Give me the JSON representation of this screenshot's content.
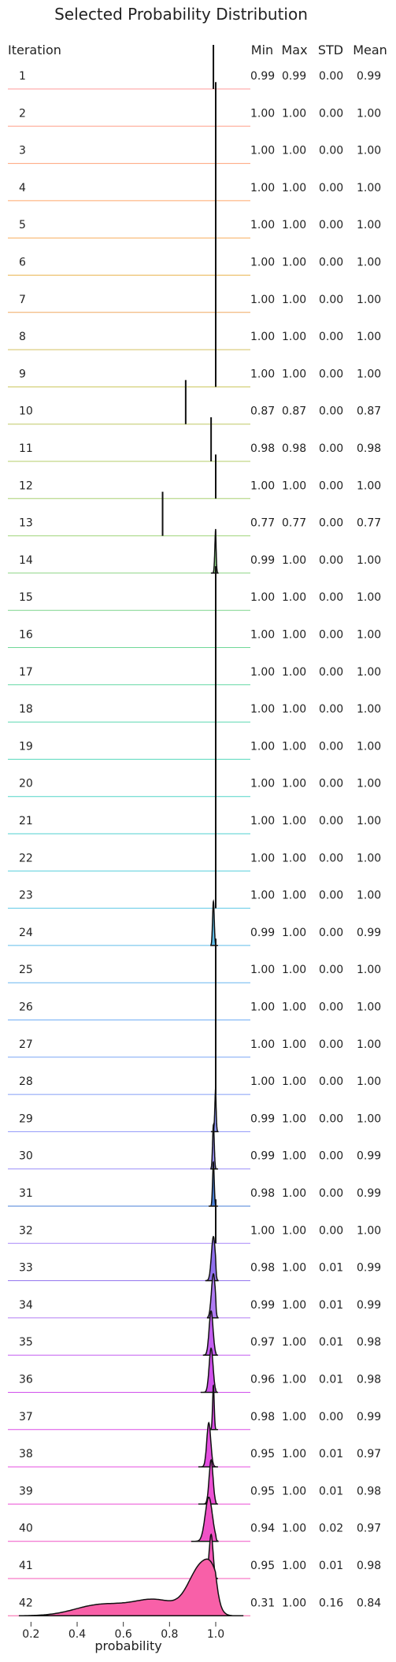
{
  "chart_data": {
    "type": "ridgeline",
    "title": "Selected Probability Distribution",
    "xlabel": "probability",
    "row_header": "Iteration",
    "stat_headers": [
      "Min",
      "Max",
      "STD",
      "Mean"
    ],
    "xlim": [
      0.1,
      1.15
    ],
    "xticks": [
      "0.2",
      "0.4",
      "0.6",
      "0.8",
      "1.0"
    ],
    "xtick_values": [
      0.2,
      0.4,
      0.6,
      0.8,
      1.0
    ],
    "rows": [
      {
        "iteration": "1",
        "min": "0.99",
        "max": "0.99",
        "std": "0.00",
        "mean": "0.99",
        "color": "#ff9999"
      },
      {
        "iteration": "2",
        "min": "1.00",
        "max": "1.00",
        "std": "0.00",
        "mean": "1.00",
        "color": "#ff9f8a"
      },
      {
        "iteration": "3",
        "min": "1.00",
        "max": "1.00",
        "std": "0.00",
        "mean": "1.00",
        "color": "#ffa37a"
      },
      {
        "iteration": "4",
        "min": "1.00",
        "max": "1.00",
        "std": "0.00",
        "mean": "1.00",
        "color": "#ffa86a"
      },
      {
        "iteration": "5",
        "min": "1.00",
        "max": "1.00",
        "std": "0.00",
        "mean": "1.00",
        "color": "#f8ad5c"
      },
      {
        "iteration": "6",
        "min": "1.00",
        "max": "1.00",
        "std": "0.00",
        "mean": "1.00",
        "color": "#e9b652"
      },
      {
        "iteration": "7",
        "min": "1.00",
        "max": "1.00",
        "std": "0.00",
        "mean": "1.00",
        "color": "#f0a860"
      },
      {
        "iteration": "8",
        "min": "1.00",
        "max": "1.00",
        "std": "0.00",
        "mean": "1.00",
        "color": "#d4c060"
      },
      {
        "iteration": "9",
        "min": "1.00",
        "max": "1.00",
        "std": "0.00",
        "mean": "1.00",
        "color": "#c9c45a"
      },
      {
        "iteration": "10",
        "min": "0.87",
        "max": "0.87",
        "std": "0.00",
        "mean": "0.87",
        "color": "#c0c865"
      },
      {
        "iteration": "11",
        "min": "0.98",
        "max": "0.98",
        "std": "0.00",
        "mean": "0.98",
        "color": "#b4cc6a"
      },
      {
        "iteration": "12",
        "min": "1.00",
        "max": "1.00",
        "std": "0.00",
        "mean": "1.00",
        "color": "#a8d070"
      },
      {
        "iteration": "13",
        "min": "0.77",
        "max": "0.77",
        "std": "0.00",
        "mean": "0.77",
        "color": "#9fd47a"
      },
      {
        "iteration": "14",
        "min": "0.99",
        "max": "1.00",
        "std": "0.00",
        "mean": "1.00",
        "color": "#8ed584"
      },
      {
        "iteration": "15",
        "min": "1.00",
        "max": "1.00",
        "std": "0.00",
        "mean": "1.00",
        "color": "#7ed68e"
      },
      {
        "iteration": "16",
        "min": "1.00",
        "max": "1.00",
        "std": "0.00",
        "mean": "1.00",
        "color": "#6fd798"
      },
      {
        "iteration": "17",
        "min": "1.00",
        "max": "1.00",
        "std": "0.00",
        "mean": "1.00",
        "color": "#62d8a4"
      },
      {
        "iteration": "18",
        "min": "1.00",
        "max": "1.00",
        "std": "0.00",
        "mean": "1.00",
        "color": "#5ad8b0"
      },
      {
        "iteration": "19",
        "min": "1.00",
        "max": "1.00",
        "std": "0.00",
        "mean": "1.00",
        "color": "#55d8bc"
      },
      {
        "iteration": "20",
        "min": "1.00",
        "max": "1.00",
        "std": "0.00",
        "mean": "1.00",
        "color": "#52d6c8"
      },
      {
        "iteration": "21",
        "min": "1.00",
        "max": "1.00",
        "std": "0.00",
        "mean": "1.00",
        "color": "#52d2d2"
      },
      {
        "iteration": "22",
        "min": "1.00",
        "max": "1.00",
        "std": "0.00",
        "mean": "1.00",
        "color": "#55cddc"
      },
      {
        "iteration": "23",
        "min": "1.00",
        "max": "1.00",
        "std": "0.00",
        "mean": "1.00",
        "color": "#5ac6e4"
      },
      {
        "iteration": "24",
        "min": "0.99",
        "max": "1.00",
        "std": "0.00",
        "mean": "0.99",
        "color": "#60beea"
      },
      {
        "iteration": "25",
        "min": "1.00",
        "max": "1.00",
        "std": "0.00",
        "mean": "1.00",
        "color": "#68b6f0"
      },
      {
        "iteration": "26",
        "min": "1.00",
        "max": "1.00",
        "std": "0.00",
        "mean": "1.00",
        "color": "#70aef4"
      },
      {
        "iteration": "27",
        "min": "1.00",
        "max": "1.00",
        "std": "0.00",
        "mean": "1.00",
        "color": "#7aa6f6"
      },
      {
        "iteration": "28",
        "min": "1.00",
        "max": "1.00",
        "std": "0.00",
        "mean": "1.00",
        "color": "#849ef8"
      },
      {
        "iteration": "29",
        "min": "0.99",
        "max": "1.00",
        "std": "0.00",
        "mean": "1.00",
        "color": "#8e96f8"
      },
      {
        "iteration": "30",
        "min": "0.99",
        "max": "1.00",
        "std": "0.00",
        "mean": "0.99",
        "color": "#9a8ff8"
      },
      {
        "iteration": "31",
        "min": "0.98",
        "max": "1.00",
        "std": "0.00",
        "mean": "0.99",
        "color": "#4a7fd8"
      },
      {
        "iteration": "32",
        "min": "1.00",
        "max": "1.00",
        "std": "0.00",
        "mean": "1.00",
        "color": "#a888f8"
      },
      {
        "iteration": "33",
        "min": "0.98",
        "max": "1.00",
        "std": "0.01",
        "mean": "0.99",
        "color": "#9070ee"
      },
      {
        "iteration": "34",
        "min": "0.99",
        "max": "1.00",
        "std": "0.01",
        "mean": "0.99",
        "color": "#b07cf4"
      },
      {
        "iteration": "35",
        "min": "0.97",
        "max": "1.00",
        "std": "0.01",
        "mean": "0.98",
        "color": "#c35ef0"
      },
      {
        "iteration": "36",
        "min": "0.96",
        "max": "1.00",
        "std": "0.01",
        "mean": "0.98",
        "color": "#d050ec"
      },
      {
        "iteration": "37",
        "min": "0.98",
        "max": "1.00",
        "std": "0.00",
        "mean": "0.99",
        "color": "#dc4ee6"
      },
      {
        "iteration": "38",
        "min": "0.95",
        "max": "1.00",
        "std": "0.01",
        "mean": "0.97",
        "color": "#e44ee0"
      },
      {
        "iteration": "39",
        "min": "0.95",
        "max": "1.00",
        "std": "0.01",
        "mean": "0.98",
        "color": "#ec50d4"
      },
      {
        "iteration": "40",
        "min": "0.94",
        "max": "1.00",
        "std": "0.02",
        "mean": "0.97",
        "color": "#f052c6"
      },
      {
        "iteration": "41",
        "min": "0.95",
        "max": "1.00",
        "std": "0.01",
        "mean": "0.98",
        "color": "#f458b8"
      },
      {
        "iteration": "42",
        "min": "0.31",
        "max": "1.00",
        "std": "0.16",
        "mean": "0.84",
        "color": "#f860a8"
      }
    ]
  }
}
